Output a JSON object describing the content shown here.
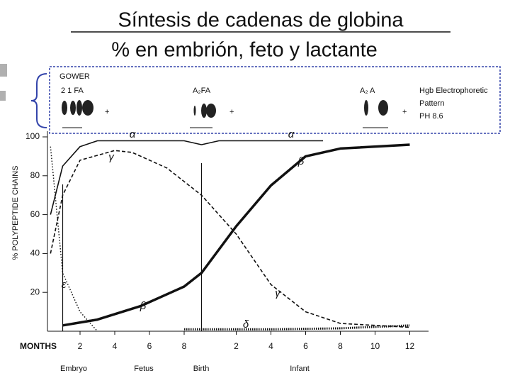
{
  "title": "Síntesis de cadenas de globina",
  "subtitle": "% en embrión, feto y lactante",
  "chart_data": {
    "type": "line",
    "y_label": "% POLYPEPTIDE CHAINS",
    "x_label": "MONTHS",
    "xlim": [
      0,
      22
    ],
    "ylim": [
      0,
      100
    ],
    "xticks": [
      2,
      4,
      6,
      8,
      {
        "value": 11,
        "label": "2"
      },
      {
        "value": 13,
        "label": "4"
      },
      {
        "value": 15,
        "label": "6"
      },
      {
        "value": 17,
        "label": "8"
      },
      {
        "value": 19,
        "label": "10"
      },
      {
        "value": 21,
        "label": "12"
      }
    ],
    "yticks": [
      20,
      40,
      60,
      80,
      100
    ],
    "periods": [
      "Embryo",
      "Fetus",
      "Birth",
      "Infant"
    ],
    "vertical_lines": [
      1,
      9
    ],
    "series": [
      {
        "name": "α",
        "style": "solid",
        "x": [
          0.3,
          1,
          2,
          3,
          5,
          8,
          9,
          10,
          13,
          16
        ],
        "values": [
          60,
          85,
          95,
          98,
          98,
          98,
          96,
          98,
          98,
          98
        ]
      },
      {
        "name": "γ",
        "style": "dashed",
        "x": [
          0.3,
          1,
          2,
          4,
          5,
          7,
          9,
          11,
          13,
          15,
          17,
          21
        ],
        "values": [
          40,
          70,
          88,
          93,
          92,
          84,
          70,
          50,
          24,
          10,
          4,
          2
        ]
      },
      {
        "name": "β",
        "style": "solid-thick",
        "x": [
          1,
          3,
          5.5,
          8,
          9,
          11,
          13,
          15,
          17,
          21
        ],
        "values": [
          3,
          6,
          13,
          23,
          30,
          54,
          75,
          90,
          94,
          96
        ]
      },
      {
        "name": "ε",
        "style": "dotted",
        "x": [
          0.3,
          1,
          2,
          3
        ],
        "values": [
          95,
          30,
          10,
          0
        ]
      },
      {
        "name": "δ",
        "style": "dotted-thick",
        "x": [
          8,
          9,
          13,
          17,
          21
        ],
        "values": [
          1,
          1,
          1,
          1.5,
          3
        ]
      }
    ]
  },
  "electrophoresis": {
    "title": "GOWER",
    "anode": "+",
    "patterns": [
      "2 1 FA",
      "A₂FA",
      "A₂ A"
    ],
    "note": [
      "Hgb Electrophoretic",
      "Pattern",
      "PH 8.6"
    ]
  }
}
